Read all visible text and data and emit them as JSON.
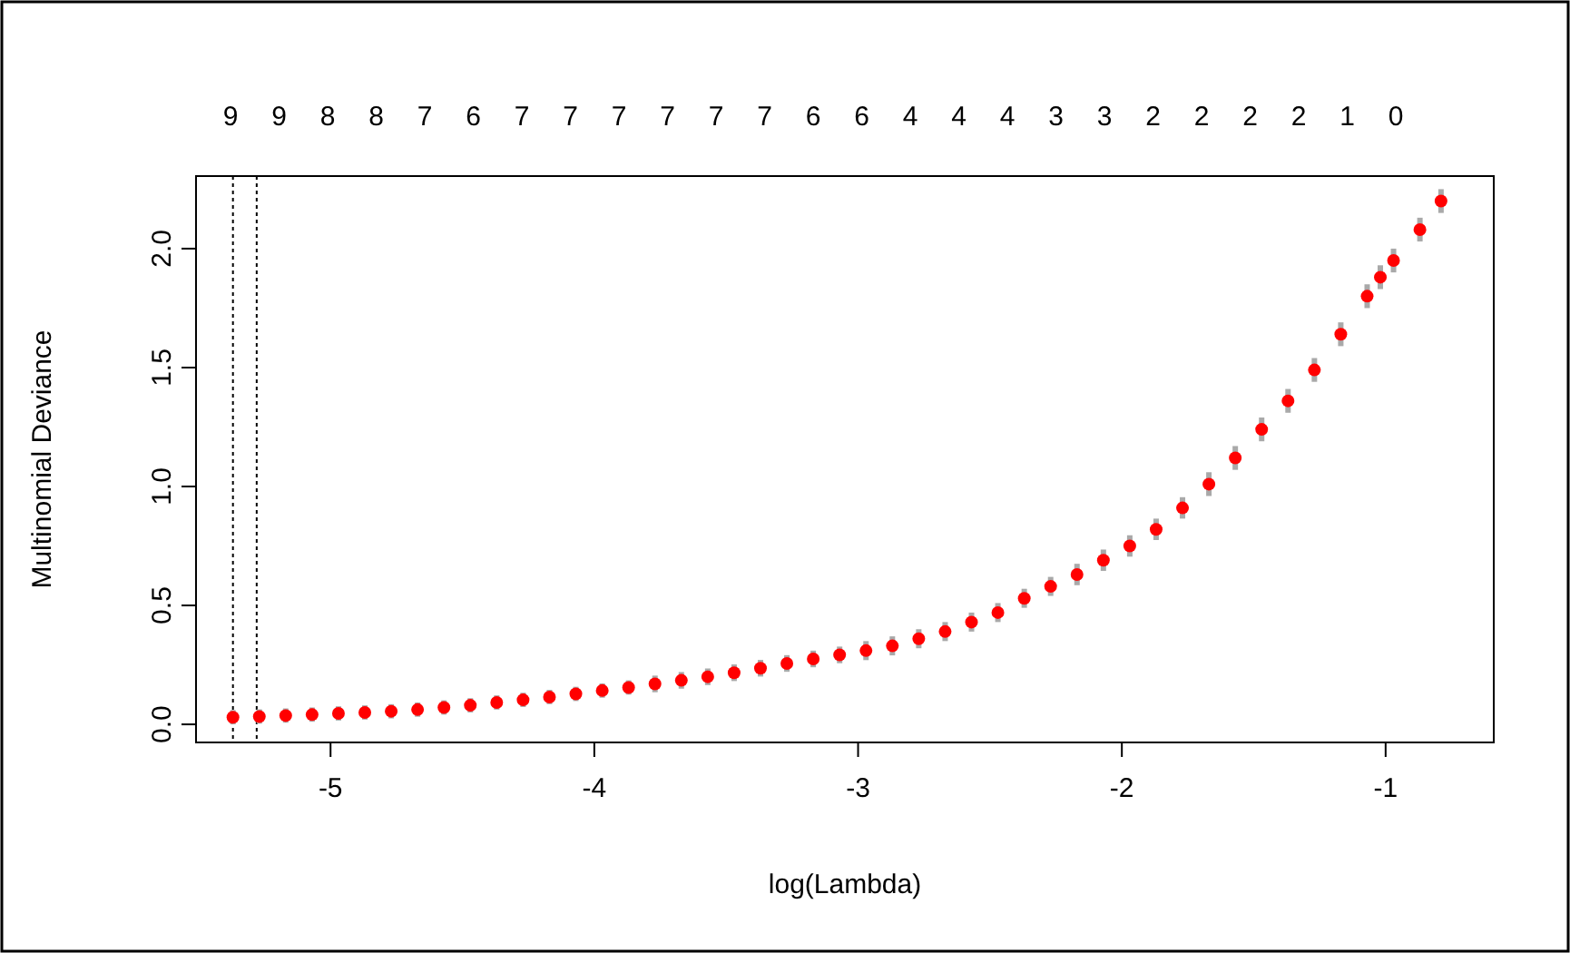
{
  "chart_data": {
    "type": "scatter",
    "xlabel": "log(Lambda)",
    "ylabel": "Multinomial Deviance",
    "marker": "circle",
    "grid": false,
    "xlim": [
      -5.51,
      -0.59
    ],
    "xticks": [
      -5,
      -4,
      -3,
      -2,
      -1
    ],
    "ylim": [
      -0.076,
      2.305
    ],
    "yticks": [
      {
        "value": 0,
        "label": "0.0"
      },
      {
        "value": 0.5,
        "label": "0.5"
      },
      {
        "value": 1,
        "label": "1.0"
      },
      {
        "value": 1.5,
        "label": "1.5"
      },
      {
        "value": 2,
        "label": "2.0"
      }
    ],
    "annotations": [
      "9",
      "9",
      "8",
      "8",
      "7",
      "6",
      "7",
      "7",
      "7",
      "7",
      "7",
      "7",
      "6",
      "6",
      "4",
      "4",
      "4",
      "3",
      "3",
      "2",
      "2",
      "2",
      "2",
      "1",
      "0"
    ],
    "ref_lines": [
      {
        "axis": "x",
        "value": -5.37,
        "color": "#000000",
        "line_style": "dotted"
      },
      {
        "axis": "x",
        "value": -5.28,
        "color": "#000000",
        "line_style": "dotted"
      }
    ],
    "series": [
      {
        "color": "#ff0000",
        "x": [
          -5.37,
          -5.27,
          -5.17,
          -5.07,
          -4.97,
          -4.87,
          -4.77,
          -4.67,
          -4.57,
          -4.47,
          -4.37,
          -4.27,
          -4.17,
          -4.07,
          -3.97,
          -3.87,
          -3.77,
          -3.67,
          -3.57,
          -3.47,
          -3.37,
          -3.27,
          -3.17,
          -3.07,
          -2.97,
          -2.87,
          -2.77,
          -2.67,
          -2.57,
          -2.47,
          -2.37,
          -2.27,
          -2.17,
          -2.07,
          -1.97,
          -1.87,
          -1.77,
          -1.67,
          -1.57,
          -1.47,
          -1.37,
          -1.27,
          -1.17,
          -1.07,
          -1.02,
          -0.97,
          -0.87,
          -0.79
        ],
        "values": [
          0.03,
          0.033,
          0.037,
          0.041,
          0.046,
          0.05,
          0.055,
          0.062,
          0.071,
          0.08,
          0.092,
          0.103,
          0.115,
          0.128,
          0.142,
          0.155,
          0.17,
          0.185,
          0.2,
          0.217,
          0.236,
          0.256,
          0.275,
          0.292,
          0.31,
          0.33,
          0.36,
          0.39,
          0.43,
          0.47,
          0.53,
          0.58,
          0.63,
          0.69,
          0.75,
          0.82,
          0.91,
          1.01,
          1.12,
          1.24,
          1.36,
          1.49,
          1.64,
          1.8,
          1.88,
          1.95,
          2.08,
          2.2
        ],
        "errors": [
          0.03,
          0.03,
          0.03,
          0.03,
          0.03,
          0.03,
          0.03,
          0.03,
          0.03,
          0.03,
          0.03,
          0.03,
          0.03,
          0.03,
          0.03,
          0.03,
          0.035,
          0.035,
          0.035,
          0.035,
          0.035,
          0.035,
          0.035,
          0.035,
          0.04,
          0.04,
          0.04,
          0.04,
          0.04,
          0.04,
          0.04,
          0.04,
          0.045,
          0.045,
          0.045,
          0.045,
          0.045,
          0.05,
          0.05,
          0.05,
          0.05,
          0.05,
          0.05,
          0.05,
          0.05,
          0.05,
          0.05,
          0.05
        ]
      }
    ]
  }
}
